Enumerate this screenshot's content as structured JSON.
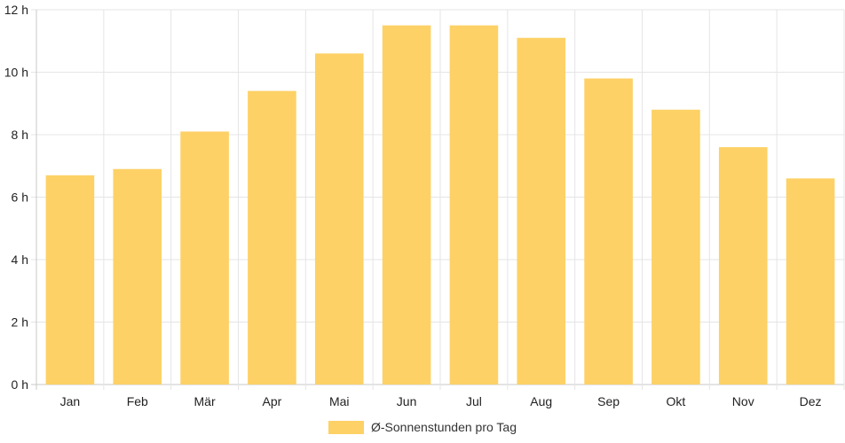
{
  "chart_data": {
    "type": "bar",
    "categories": [
      "Jan",
      "Feb",
      "Mär",
      "Apr",
      "Mai",
      "Jun",
      "Jul",
      "Aug",
      "Sep",
      "Okt",
      "Nov",
      "Dez"
    ],
    "series": [
      {
        "name": "Ø-Sonnenstunden pro Tag",
        "values": [
          6.7,
          6.9,
          8.1,
          9.4,
          10.6,
          11.5,
          11.5,
          11.1,
          9.8,
          8.8,
          7.6,
          6.6
        ],
        "color": "#fdd166"
      }
    ],
    "y_ticks": [
      "0 h",
      "2 h",
      "4 h",
      "6 h",
      "8 h",
      "10 h",
      "12 h"
    ],
    "ylim": [
      0,
      12
    ],
    "grid": true,
    "legend_position": "bottom-center",
    "grid_color": "#e5e5e5"
  }
}
